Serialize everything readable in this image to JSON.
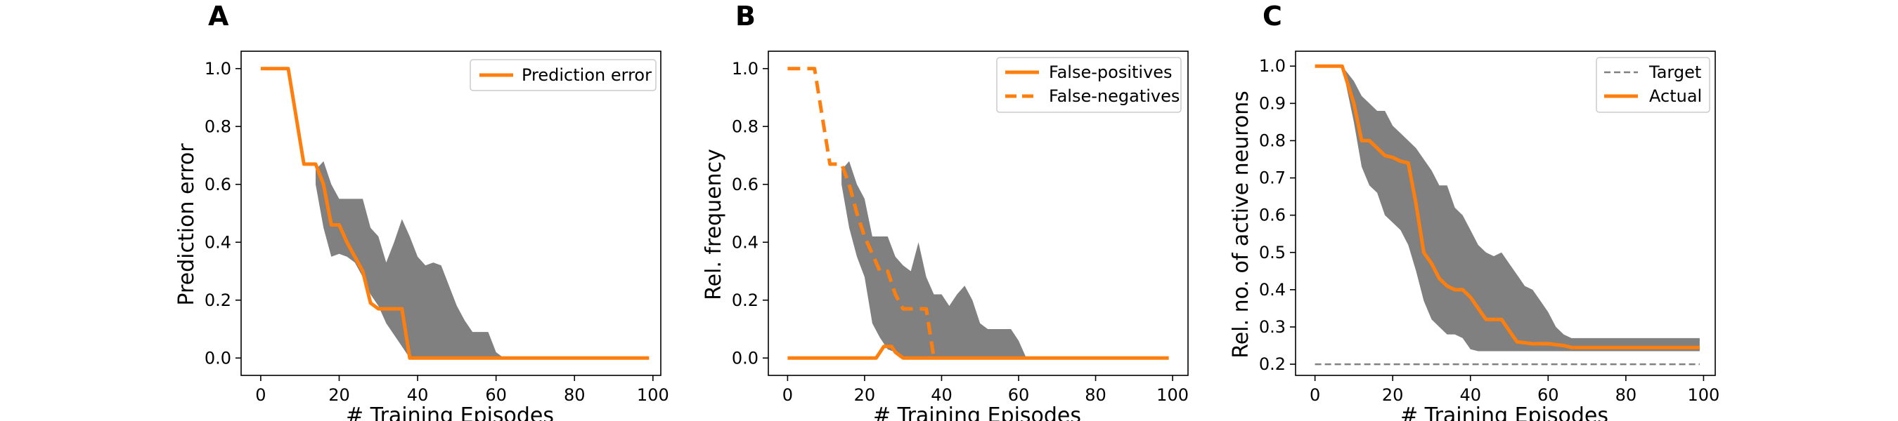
{
  "colors": {
    "band": "#808080",
    "line": "#ff7f0e",
    "target": "#808080",
    "axis": "#000000"
  },
  "chart_data": [
    {
      "panel": "A",
      "type": "line",
      "xlabel": "# Training Episodes",
      "ylabel": "Prediction error",
      "xlim": [
        -5,
        102
      ],
      "ylim": [
        -0.06,
        1.06
      ],
      "xticks": [
        0,
        20,
        40,
        60,
        80,
        100
      ],
      "yticks": [
        0.0,
        0.2,
        0.4,
        0.6,
        0.8,
        1.0
      ],
      "ytick_labels": [
        "0.0",
        "0.2",
        "0.4",
        "0.6",
        "0.8",
        "1.0"
      ],
      "grid": false,
      "legend": {
        "position": "top-right",
        "entries": [
          "Prediction error"
        ]
      },
      "band": {
        "x": [
          14,
          16,
          18,
          20,
          22,
          24,
          26,
          28,
          30,
          32,
          34,
          36,
          38,
          40,
          42,
          44,
          46,
          48,
          50,
          52,
          54,
          56,
          58,
          60,
          62,
          64
        ],
        "upper": [
          0.65,
          0.68,
          0.6,
          0.55,
          0.55,
          0.55,
          0.55,
          0.45,
          0.42,
          0.33,
          0.4,
          0.48,
          0.42,
          0.35,
          0.32,
          0.33,
          0.32,
          0.25,
          0.18,
          0.13,
          0.09,
          0.09,
          0.09,
          0.02,
          0.0,
          0.0
        ],
        "lower": [
          0.6,
          0.45,
          0.35,
          0.36,
          0.35,
          0.33,
          0.28,
          0.22,
          0.18,
          0.12,
          0.08,
          0.04,
          0.0,
          0.0,
          0.0,
          0.0,
          0.0,
          0.0,
          0.0,
          0.0,
          0.0,
          0.0,
          0.0,
          0.0,
          0.0,
          0.0
        ]
      },
      "series": [
        {
          "name": "Prediction error",
          "style": "solid",
          "x": [
            0,
            7,
            11,
            14,
            16,
            18,
            20,
            22,
            24,
            26,
            28,
            30,
            32,
            34,
            36,
            38,
            40,
            60,
            80,
            99
          ],
          "y": [
            1.0,
            1.0,
            0.67,
            0.67,
            0.6,
            0.46,
            0.46,
            0.4,
            0.35,
            0.3,
            0.19,
            0.17,
            0.17,
            0.17,
            0.17,
            0.0,
            0.0,
            0.0,
            0.0,
            0.0
          ]
        }
      ]
    },
    {
      "panel": "B",
      "type": "line",
      "xlabel": "# Training Episodes",
      "ylabel": "Rel. frequency",
      "xlim": [
        -5,
        104
      ],
      "ylim": [
        -0.06,
        1.06
      ],
      "xticks": [
        0,
        20,
        40,
        60,
        80,
        100
      ],
      "yticks": [
        0.0,
        0.2,
        0.4,
        0.6,
        0.8,
        1.0
      ],
      "ytick_labels": [
        "0.0",
        "0.2",
        "0.4",
        "0.6",
        "0.8",
        "1.0"
      ],
      "grid": false,
      "legend": {
        "position": "top-right",
        "entries": [
          "False-positives",
          "False-negatives"
        ]
      },
      "band": {
        "x": [
          14,
          16,
          18,
          20,
          22,
          24,
          26,
          28,
          30,
          32,
          34,
          36,
          38,
          40,
          42,
          44,
          46,
          48,
          50,
          52,
          54,
          56,
          58,
          60,
          62,
          64
        ],
        "upper": [
          0.65,
          0.68,
          0.6,
          0.55,
          0.42,
          0.42,
          0.42,
          0.35,
          0.32,
          0.3,
          0.4,
          0.28,
          0.22,
          0.22,
          0.18,
          0.22,
          0.25,
          0.2,
          0.12,
          0.1,
          0.1,
          0.1,
          0.1,
          0.06,
          0.0,
          0.0
        ],
        "lower": [
          0.6,
          0.45,
          0.35,
          0.28,
          0.12,
          0.07,
          0.03,
          0.02,
          0.0,
          0.0,
          0.0,
          0.0,
          0.0,
          0.0,
          0.0,
          0.0,
          0.0,
          0.0,
          0.0,
          0.0,
          0.0,
          0.0,
          0.0,
          0.0,
          0.0,
          0.0
        ]
      },
      "series": [
        {
          "name": "False-positives",
          "style": "solid",
          "x": [
            0,
            20,
            23,
            25,
            27,
            28,
            30,
            40,
            60,
            80,
            99
          ],
          "y": [
            0.0,
            0.0,
            0.0,
            0.04,
            0.04,
            0.02,
            0.0,
            0.0,
            0.0,
            0.0,
            0.0
          ]
        },
        {
          "name": "False-negatives",
          "style": "dashed",
          "x": [
            0,
            7,
            11,
            14,
            16,
            18,
            20,
            22,
            24,
            26,
            28,
            30,
            32,
            34,
            36,
            38
          ],
          "y": [
            1.0,
            1.0,
            0.67,
            0.67,
            0.6,
            0.5,
            0.42,
            0.36,
            0.3,
            0.3,
            0.22,
            0.17,
            0.17,
            0.17,
            0.17,
            0.0
          ]
        }
      ]
    },
    {
      "panel": "C",
      "type": "line",
      "xlabel": "# Training Episodes",
      "ylabel": "Rel. no. of active neurons",
      "xlim": [
        -5,
        103
      ],
      "ylim": [
        0.17,
        1.04
      ],
      "xticks": [
        0,
        20,
        40,
        60,
        80,
        100
      ],
      "yticks": [
        0.2,
        0.3,
        0.4,
        0.5,
        0.6,
        0.7,
        0.8,
        0.9,
        1.0
      ],
      "ytick_labels": [
        "0.2",
        "0.3",
        "0.4",
        "0.5",
        "0.6",
        "0.7",
        "0.8",
        "0.9",
        "1.0"
      ],
      "grid": false,
      "legend": {
        "position": "top-right",
        "entries": [
          "Target",
          "Actual"
        ]
      },
      "band": {
        "x": [
          7,
          10,
          12,
          14,
          16,
          18,
          20,
          22,
          24,
          26,
          28,
          30,
          32,
          34,
          36,
          38,
          40,
          42,
          44,
          46,
          48,
          50,
          52,
          54,
          56,
          58,
          60,
          62,
          64,
          66,
          68,
          70,
          80,
          90,
          99
        ],
        "upper": [
          1.0,
          0.96,
          0.92,
          0.9,
          0.88,
          0.88,
          0.84,
          0.82,
          0.8,
          0.78,
          0.75,
          0.72,
          0.68,
          0.68,
          0.62,
          0.6,
          0.56,
          0.52,
          0.5,
          0.49,
          0.5,
          0.47,
          0.44,
          0.41,
          0.4,
          0.37,
          0.34,
          0.3,
          0.28,
          0.27,
          0.27,
          0.27,
          0.27,
          0.27,
          0.27
        ],
        "lower": [
          1.0,
          0.85,
          0.73,
          0.68,
          0.66,
          0.6,
          0.58,
          0.56,
          0.52,
          0.45,
          0.37,
          0.32,
          0.3,
          0.28,
          0.28,
          0.27,
          0.24,
          0.235,
          0.235,
          0.235,
          0.235,
          0.235,
          0.235,
          0.235,
          0.235,
          0.235,
          0.235,
          0.235,
          0.235,
          0.235,
          0.235,
          0.235,
          0.235,
          0.235,
          0.235
        ]
      },
      "series": [
        {
          "name": "Target",
          "style": "dashed",
          "x": [
            0,
            99
          ],
          "y": [
            0.2,
            0.2
          ]
        },
        {
          "name": "Actual",
          "style": "solid",
          "x": [
            0,
            7,
            10,
            12,
            14,
            16,
            18,
            20,
            22,
            24,
            26,
            28,
            30,
            32,
            34,
            36,
            38,
            40,
            42,
            44,
            46,
            48,
            50,
            52,
            56,
            60,
            64,
            66,
            70,
            80,
            99
          ],
          "y": [
            1.0,
            1.0,
            0.9,
            0.8,
            0.8,
            0.78,
            0.76,
            0.755,
            0.745,
            0.74,
            0.63,
            0.5,
            0.47,
            0.43,
            0.41,
            0.4,
            0.4,
            0.38,
            0.35,
            0.32,
            0.32,
            0.32,
            0.29,
            0.26,
            0.255,
            0.255,
            0.25,
            0.245,
            0.245,
            0.245,
            0.245
          ]
        }
      ]
    }
  ]
}
